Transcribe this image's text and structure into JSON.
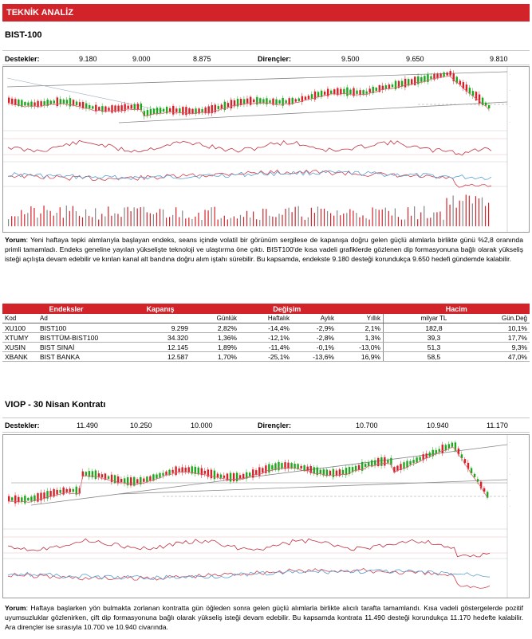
{
  "header": {
    "title": "TEKNİK ANALİZ"
  },
  "bist": {
    "title": "BIST-100",
    "supports_label": "Destekler:",
    "supports": [
      "9.180",
      "9.000",
      "8.875"
    ],
    "resistances_label": "Dirençler:",
    "resistances": [
      "9.500",
      "9.650",
      "9.810"
    ],
    "comment_label": "Yorum",
    "comment": ": Yeni haftaya tepki alımlarıyla başlayan endeks, seans içinde volatil bir görünüm sergilese de kapanışa doğru gelen güçlü alımlarla birlikte günü %2,8 oranında primli tamamladı. Endeks geneline yayılan yükselişte teknoloji ve ulaştırma öne çıktı. BIST100'de kısa vadeli grafiklerde gözlenen dip formasyonuna bağlı olarak yükseliş isteği açılışta devam edebilir ve kırılan kanal alt bandına doğru alım iştahı sürebilir. Bu kapsamda, endekste 9.180 desteği korundukça 9.650 hedefi gündemde kalabilir."
  },
  "table": {
    "group_headers": {
      "indices": "Endeksler",
      "close": "Kapanış",
      "change": "Değişim",
      "volume": "Hacim"
    },
    "columns": {
      "code": "Kod",
      "name": "Ad",
      "daily": "Günlük",
      "weekly": "Haftalık",
      "monthly": "Aylık",
      "yearly": "Yıllık",
      "vol_tl": "milyar TL",
      "vol_chg": "Gün.Değ"
    },
    "rows": [
      {
        "code": "XU100",
        "name": "BIST100",
        "close": "9.299",
        "daily": "2,82%",
        "weekly": "-14,4%",
        "monthly": "-2,9%",
        "yearly": "2,1%",
        "vol": "182,8",
        "vol_chg": "10,1%"
      },
      {
        "code": "XTUMY",
        "name": "BISTTÜM-BIST100",
        "close": "34.320",
        "daily": "1,36%",
        "weekly": "-12,1%",
        "monthly": "-2,8%",
        "yearly": "1,3%",
        "vol": "39,3",
        "vol_chg": "17,7%"
      },
      {
        "code": "XUSIN",
        "name": "BIST SINAİ",
        "close": "12.145",
        "daily": "1,89%",
        "weekly": "-11,4%",
        "monthly": "-0,1%",
        "yearly": "-13,0%",
        "vol": "51,3",
        "vol_chg": "9,3%"
      },
      {
        "code": "XBANK",
        "name": "BIST BANKA",
        "close": "12.587",
        "daily": "1,70%",
        "weekly": "-25,1%",
        "monthly": "-13,6%",
        "yearly": "16,9%",
        "vol": "58,5",
        "vol_chg": "47,0%"
      }
    ]
  },
  "viop": {
    "title": "VIOP - 30 Nisan Kontratı",
    "supports_label": "Destekler:",
    "supports": [
      "11.490",
      "10.250",
      "10.000"
    ],
    "resistances_label": "Dirençler:",
    "resistances": [
      "10.700",
      "10.940",
      "11.170"
    ],
    "comment_label": "Yorum",
    "comment": ": Haftaya başlarken yön bulmakta zorlanan kontratta gün öğleden sonra gelen güçlü alımlarla birlikte alıcılı tarafta tamamlandı. Kısa vadeli göstergelerde pozitif uyumsuzluklar gözlenirken, çift dip formasyonuna bağlı olarak yükseliş isteği devam edebilir. Bu kapsamda kontrata 11.490 desteği korundukça 11.170 hedefte kalabilir. Ara dirençler ise sırasıyla 10.700 ve 10.940 civarında."
  },
  "colors": {
    "accent": "#d2232a",
    "up": "#1fa81f",
    "down": "#d2232a"
  }
}
